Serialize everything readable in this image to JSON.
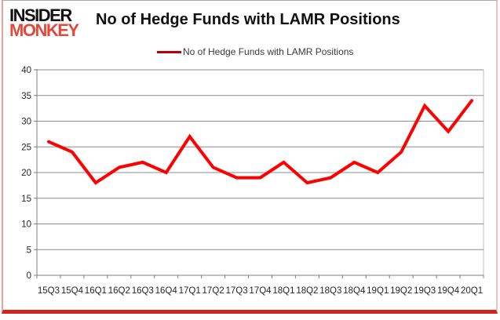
{
  "header": {
    "logo_line1": "INSIDER",
    "logo_line2": "MONKEY",
    "title": "No of Hedge Funds with LAMR Positions"
  },
  "legend": {
    "label": "No of Hedge Funds with LAMR Positions"
  },
  "colors": {
    "series_line": "#ff0000",
    "legend_line": "#c00000",
    "logo_black": "#111111",
    "logo_red": "#e2493b",
    "gridline": "#8c8c8c",
    "axis_line": "#7f7f7f",
    "tick_text": "#262626",
    "border_bottom_red": "#d3251f",
    "border_side_pink": "#e2a29e"
  },
  "chart_data": {
    "type": "line",
    "title": "No of Hedge Funds with LAMR Positions",
    "categories": [
      "15Q3",
      "15Q4",
      "16Q1",
      "16Q2",
      "16Q3",
      "16Q4",
      "17Q1",
      "17Q2",
      "17Q3",
      "17Q4",
      "18Q1",
      "18Q2",
      "18Q3",
      "18Q4",
      "19Q1",
      "19Q2",
      "19Q3",
      "19Q4",
      "20Q1"
    ],
    "series": [
      {
        "name": "No of Hedge Funds with LAMR Positions",
        "color": "#ff0000",
        "values": [
          26,
          24,
          18,
          21,
          22,
          20,
          27,
          21,
          19,
          19,
          22,
          18,
          19,
          22,
          20,
          24,
          33,
          28,
          34
        ]
      }
    ],
    "xlabel": "",
    "ylabel": "",
    "ylim": [
      0,
      40
    ],
    "yticks": [
      0,
      5,
      10,
      15,
      20,
      25,
      30,
      35,
      40
    ],
    "grid": true,
    "legend_position": "top"
  }
}
